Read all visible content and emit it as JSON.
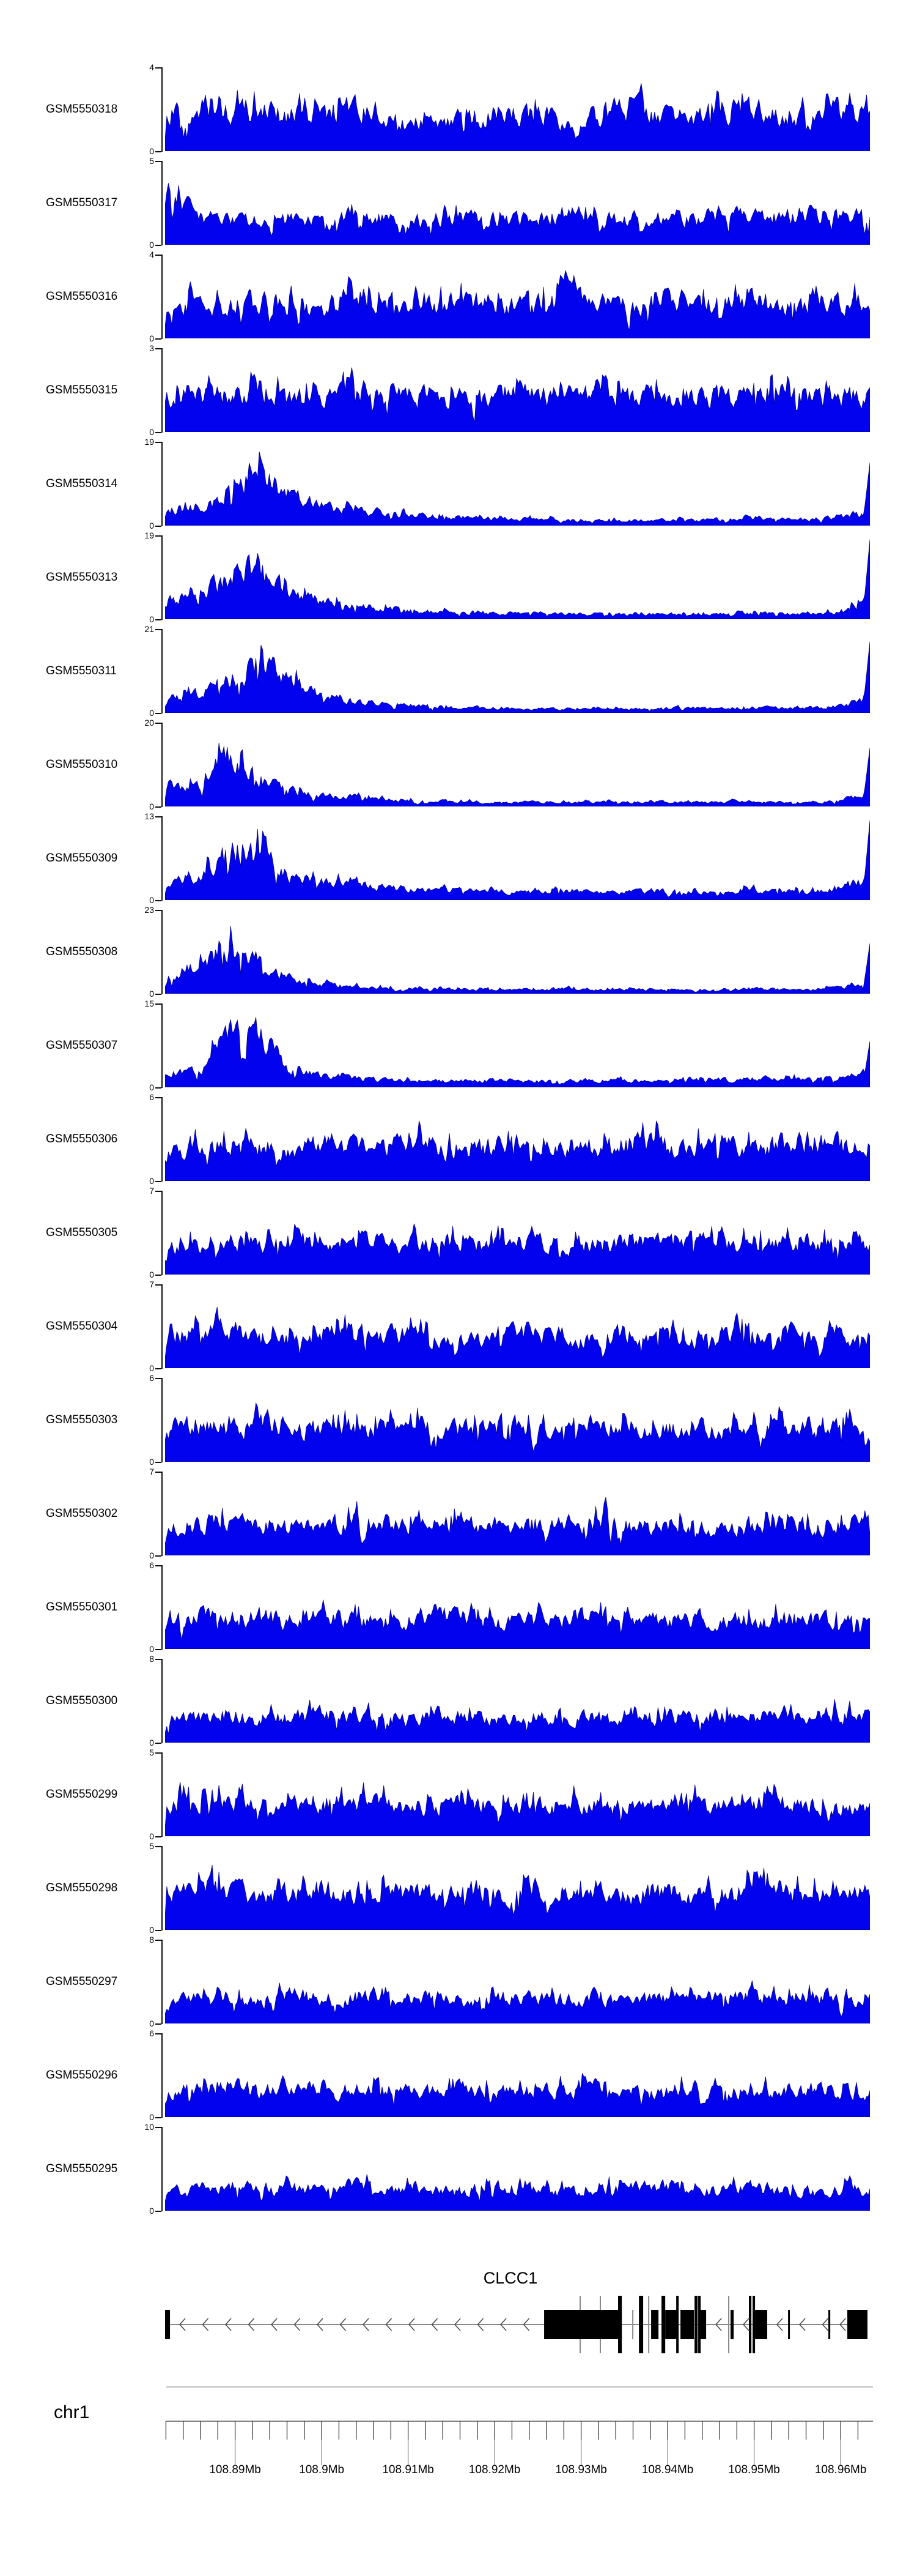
{
  "chart_data": {
    "type": "area",
    "figure_kind": "genome-browser-coverage-tracks",
    "y_axis_zero_label": "0",
    "colors": {
      "data_fill": "#0202ee",
      "data_stroke": "#000080",
      "gene_fill": "#000000",
      "gene_line": "#8a8a8a",
      "gene_gray_feature": "#8a8a8a",
      "arrow": "#4d4d4d",
      "ruler_line": "#999999",
      "ruler_tick": "#3c3c3c",
      "ruler_tick_ext": "#8a8a8a",
      "text": "#000000"
    },
    "tracks": [
      {
        "label": "GSM5550318",
        "ymax": 4,
        "edge": 0,
        "envelope": [
          0.72,
          0.62,
          0.75,
          0.82,
          0.66,
          0.7,
          0.86,
          0.6,
          0.52,
          0.56,
          0.7,
          0.8,
          0.76,
          0.6,
          0.66,
          0.9,
          0.72,
          0.6,
          0.76,
          0.8,
          0.7,
          0.66,
          0.8,
          0.7
        ]
      },
      {
        "label": "GSM5550317",
        "ymax": 5,
        "edge": 0,
        "envelope": [
          1.0,
          0.55,
          0.48,
          0.46,
          0.5,
          0.42,
          0.56,
          0.5,
          0.46,
          0.5,
          0.56,
          0.46,
          0.5,
          0.6,
          0.5,
          0.46,
          0.56,
          0.5,
          0.6,
          0.5,
          0.56,
          0.6,
          0.52,
          0.56
        ]
      },
      {
        "label": "GSM5550316",
        "ymax": 4,
        "edge": 0,
        "envelope": [
          0.6,
          0.72,
          0.6,
          0.76,
          0.66,
          0.56,
          0.8,
          0.7,
          0.6,
          0.66,
          0.76,
          0.6,
          0.7,
          0.8,
          0.66,
          0.6,
          0.76,
          0.7,
          0.66,
          0.8,
          0.7,
          0.62,
          0.72,
          0.66
        ]
      },
      {
        "label": "GSM5550315",
        "ymax": 3,
        "edge": 0,
        "envelope": [
          0.7,
          0.76,
          0.66,
          0.8,
          0.7,
          0.62,
          0.76,
          0.8,
          0.66,
          0.7,
          0.6,
          0.76,
          0.7,
          0.66,
          0.8,
          0.7,
          0.76,
          0.66,
          0.7,
          0.8,
          0.76,
          0.7,
          0.66,
          0.72
        ]
      },
      {
        "label": "GSM5550314",
        "ymax": 19,
        "edge": 0.75,
        "envelope": [
          0.3,
          0.35,
          0.55,
          1.0,
          0.6,
          0.4,
          0.3,
          0.25,
          0.2,
          0.17,
          0.15,
          0.13,
          0.12,
          0.12,
          0.1,
          0.1,
          0.12,
          0.1,
          0.12,
          0.13,
          0.12,
          0.12,
          0.15,
          0.3
        ]
      },
      {
        "label": "GSM5550313",
        "ymax": 19,
        "edge": 0.95,
        "envelope": [
          0.35,
          0.4,
          0.8,
          1.0,
          0.5,
          0.35,
          0.28,
          0.22,
          0.18,
          0.15,
          0.13,
          0.12,
          0.1,
          0.1,
          0.1,
          0.09,
          0.1,
          0.1,
          0.1,
          0.12,
          0.1,
          0.1,
          0.15,
          0.35
        ]
      },
      {
        "label": "GSM5550311",
        "ymax": 21,
        "edge": 0.85,
        "envelope": [
          0.3,
          0.35,
          0.6,
          1.0,
          0.65,
          0.35,
          0.25,
          0.18,
          0.14,
          0.12,
          0.1,
          0.1,
          0.08,
          0.08,
          0.1,
          0.08,
          0.08,
          0.1,
          0.08,
          0.1,
          0.1,
          0.1,
          0.12,
          0.3
        ]
      },
      {
        "label": "GSM5550310",
        "ymax": 20,
        "edge": 0.7,
        "envelope": [
          0.45,
          0.4,
          1.0,
          0.55,
          0.3,
          0.22,
          0.18,
          0.14,
          0.12,
          0.1,
          0.09,
          0.08,
          0.08,
          0.1,
          0.08,
          0.08,
          0.1,
          0.08,
          0.08,
          0.1,
          0.08,
          0.08,
          0.12,
          0.3
        ]
      },
      {
        "label": "GSM5550309",
        "ymax": 13,
        "edge": 0.95,
        "envelope": [
          0.35,
          0.45,
          0.9,
          1.0,
          0.5,
          0.35,
          0.3,
          0.25,
          0.22,
          0.2,
          0.18,
          0.16,
          0.15,
          0.18,
          0.15,
          0.15,
          0.18,
          0.15,
          0.15,
          0.2,
          0.18,
          0.16,
          0.25,
          0.4
        ]
      },
      {
        "label": "GSM5550308",
        "ymax": 23,
        "edge": 0.6,
        "envelope": [
          0.4,
          0.5,
          1.0,
          0.6,
          0.3,
          0.2,
          0.13,
          0.11,
          0.1,
          0.1,
          0.08,
          0.08,
          0.08,
          0.1,
          0.08,
          0.08,
          0.08,
          0.08,
          0.08,
          0.1,
          0.08,
          0.08,
          0.12,
          0.25
        ]
      },
      {
        "label": "GSM5550307",
        "ymax": 15,
        "edge": 0.55,
        "envelope": [
          0.25,
          0.3,
          0.95,
          1.0,
          0.35,
          0.22,
          0.18,
          0.15,
          0.14,
          0.12,
          0.12,
          0.14,
          0.12,
          0.12,
          0.15,
          0.12,
          0.15,
          0.18,
          0.15,
          0.15,
          0.18,
          0.15,
          0.2,
          0.3
        ]
      },
      {
        "label": "GSM5550306",
        "ymax": 6,
        "edge": 0,
        "envelope": [
          0.6,
          0.7,
          0.66,
          0.7,
          0.6,
          0.76,
          0.66,
          0.7,
          0.8,
          0.6,
          0.7,
          0.66,
          0.76,
          0.7,
          0.66,
          0.7,
          0.76,
          0.66,
          0.7,
          0.6,
          0.7,
          0.76,
          0.7,
          0.66
        ]
      },
      {
        "label": "GSM5550305",
        "ymax": 7,
        "edge": 0,
        "envelope": [
          0.5,
          0.6,
          0.7,
          0.56,
          0.66,
          0.6,
          0.7,
          0.56,
          0.6,
          0.66,
          0.56,
          0.6,
          0.7,
          0.6,
          0.56,
          0.66,
          0.6,
          0.7,
          0.56,
          0.6,
          0.66,
          0.6,
          0.56,
          0.6
        ]
      },
      {
        "label": "GSM5550304",
        "ymax": 7,
        "edge": 0,
        "envelope": [
          0.6,
          0.66,
          0.7,
          0.6,
          0.56,
          0.66,
          0.7,
          0.6,
          0.66,
          0.56,
          0.6,
          0.7,
          0.66,
          0.6,
          0.56,
          0.66,
          0.6,
          0.56,
          0.6,
          0.66,
          0.7,
          0.6,
          0.56,
          0.6
        ]
      },
      {
        "label": "GSM5550303",
        "ymax": 6,
        "edge": 0,
        "envelope": [
          0.66,
          0.7,
          0.6,
          0.76,
          0.66,
          0.6,
          0.7,
          0.66,
          0.76,
          0.6,
          0.66,
          0.7,
          0.6,
          0.66,
          0.7,
          0.66,
          0.6,
          0.7,
          0.66,
          0.6,
          0.7,
          0.66,
          0.7,
          0.6
        ]
      },
      {
        "label": "GSM5550302",
        "ymax": 7,
        "edge": 0,
        "envelope": [
          0.56,
          0.6,
          0.66,
          0.56,
          0.6,
          0.5,
          0.66,
          0.6,
          0.56,
          0.6,
          0.66,
          0.56,
          0.5,
          0.6,
          0.66,
          0.6,
          0.56,
          0.6,
          0.5,
          0.56,
          0.6,
          0.56,
          0.6,
          0.56
        ]
      },
      {
        "label": "GSM5550301",
        "ymax": 6,
        "edge": 0,
        "envelope": [
          0.5,
          0.6,
          0.56,
          0.66,
          0.5,
          0.6,
          0.56,
          0.5,
          0.6,
          0.66,
          0.56,
          0.5,
          0.6,
          0.56,
          0.66,
          0.5,
          0.56,
          0.6,
          0.5,
          0.56,
          0.6,
          0.56,
          0.5,
          0.56
        ]
      },
      {
        "label": "GSM5550300",
        "ymax": 8,
        "edge": 0,
        "envelope": [
          0.42,
          0.5,
          0.6,
          0.46,
          0.5,
          0.56,
          0.46,
          0.5,
          0.42,
          0.56,
          0.5,
          0.46,
          0.5,
          0.56,
          0.46,
          0.42,
          0.5,
          0.46,
          0.56,
          0.5,
          0.46,
          0.5,
          0.56,
          0.5
        ]
      },
      {
        "label": "GSM5550299",
        "ymax": 5,
        "edge": 0,
        "envelope": [
          0.6,
          0.66,
          0.7,
          0.6,
          0.56,
          0.66,
          0.6,
          0.7,
          0.56,
          0.6,
          0.66,
          0.6,
          0.56,
          0.66,
          0.6,
          0.56,
          0.6,
          0.66,
          0.56,
          0.6,
          0.66,
          0.6,
          0.56,
          0.6
        ]
      },
      {
        "label": "GSM5550298",
        "ymax": 5,
        "edge": 0,
        "envelope": [
          0.7,
          0.76,
          0.8,
          0.7,
          0.66,
          0.76,
          0.7,
          0.8,
          0.66,
          0.7,
          0.76,
          0.7,
          0.8,
          0.7,
          0.66,
          0.76,
          0.7,
          0.66,
          0.7,
          0.76,
          0.8,
          0.7,
          0.66,
          0.7
        ]
      },
      {
        "label": "GSM5550297",
        "ymax": 8,
        "edge": 0,
        "envelope": [
          0.4,
          0.46,
          0.5,
          0.4,
          0.56,
          0.46,
          0.5,
          0.6,
          0.46,
          0.5,
          0.4,
          0.56,
          0.5,
          0.46,
          0.56,
          0.4,
          0.5,
          0.46,
          0.5,
          0.56,
          0.46,
          0.5,
          0.56,
          0.5
        ]
      },
      {
        "label": "GSM5550296",
        "ymax": 6,
        "edge": 0,
        "envelope": [
          0.5,
          0.56,
          0.6,
          0.5,
          0.46,
          0.56,
          0.5,
          0.6,
          0.46,
          0.5,
          0.56,
          0.5,
          0.46,
          0.56,
          0.6,
          0.5,
          0.46,
          0.56,
          0.5,
          0.46,
          0.5,
          0.56,
          0.5,
          0.46
        ]
      },
      {
        "label": "GSM5550295",
        "ymax": 10,
        "edge": 0,
        "envelope": [
          0.36,
          0.4,
          0.5,
          0.4,
          0.46,
          0.36,
          0.5,
          0.4,
          0.46,
          0.36,
          0.4,
          0.46,
          0.4,
          0.36,
          0.46,
          0.4,
          0.5,
          0.36,
          0.4,
          0.46,
          0.4,
          0.36,
          0.4,
          0.46
        ]
      }
    ],
    "gene_track": {
      "label": "CLCC1",
      "strand": "minus",
      "exons_mb": [
        [
          108.8819,
          108.88247
        ],
        [
          108.92572,
          108.9347
        ],
        [
          108.93809,
          108.93894
        ],
        [
          108.93972,
          108.94113
        ],
        [
          108.94148,
          108.94304
        ],
        [
          108.94381,
          108.94445
        ],
        [
          108.94727,
          108.94763
        ],
        [
          108.9501,
          108.95151
        ],
        [
          108.95392,
          108.95413
        ],
        [
          108.95858,
          108.9588
        ],
        [
          108.96077,
          108.9631
        ]
      ],
      "tall_black_mb": [
        [
          108.93427,
          108.9347
        ],
        [
          108.93668,
          108.93717
        ],
        [
          108.93929,
          108.93972
        ],
        [
          108.94099,
          108.9412
        ],
        [
          108.94311,
          108.94346
        ],
        [
          108.94353,
          108.94381
        ],
        [
          108.94939,
          108.94968
        ],
        [
          108.94982,
          108.9501
        ]
      ],
      "tall_gray_mb": [
        108.92989,
        108.93222,
        108.93781,
        108.94706
      ],
      "short_gray_mb": [
        108.93597
      ]
    },
    "axis": {
      "label": "chr1",
      "unit": "Mb",
      "range_mb": [
        108.8819,
        108.9634
      ],
      "minor_step_mb": 0.002,
      "major_ticks": [
        {
          "mb": 108.89,
          "label": "108.89Mb"
        },
        {
          "mb": 108.9,
          "label": "108.9Mb"
        },
        {
          "mb": 108.91,
          "label": "108.91Mb"
        },
        {
          "mb": 108.92,
          "label": "108.92Mb"
        },
        {
          "mb": 108.93,
          "label": "108.93Mb"
        },
        {
          "mb": 108.94,
          "label": "108.94Mb"
        },
        {
          "mb": 108.95,
          "label": "108.95Mb"
        },
        {
          "mb": 108.96,
          "label": "108.96Mb"
        }
      ]
    }
  }
}
